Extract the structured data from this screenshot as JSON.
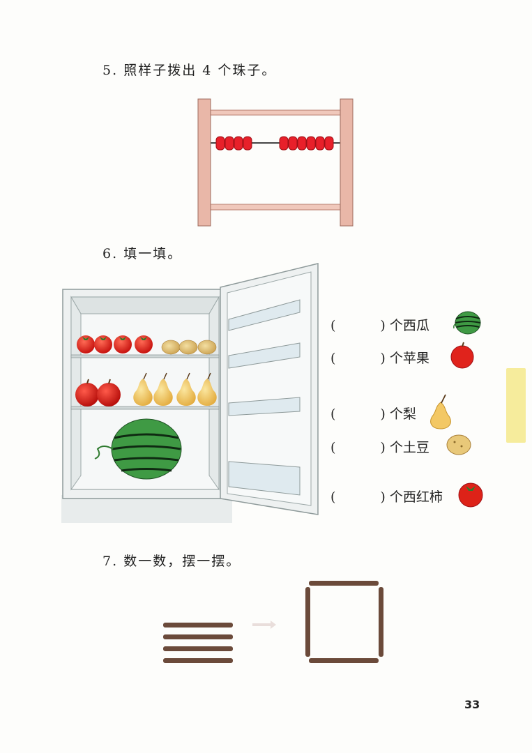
{
  "questions": [
    {
      "number": "5.",
      "text": "照样子拨出 4 个珠子。"
    },
    {
      "number": "6.",
      "text": "填一填。"
    },
    {
      "number": "7.",
      "text": "数一数，摆一摆。"
    }
  ],
  "fill_items": [
    {
      "open": "(",
      "close": ")",
      "label": "个西瓜",
      "icon": "watermelon-icon"
    },
    {
      "open": "(",
      "close": ")",
      "label": "个苹果",
      "icon": "apple-icon"
    },
    {
      "open": "(",
      "close": ")",
      "label": "个梨",
      "icon": "pear-icon"
    },
    {
      "open": "(",
      "close": ")",
      "label": "个土豆",
      "icon": "potato-icon"
    },
    {
      "open": "(",
      "close": ")",
      "label": "个西红柿",
      "icon": "tomato-icon"
    }
  ],
  "abacus": {
    "left_beads": 4,
    "right_beads": 6,
    "bead_color": "#e8202a"
  },
  "fridge_contents": {
    "tomatoes": 4,
    "potatoes": 3,
    "apples": 2,
    "pears": 4,
    "watermelons": 1
  },
  "sticks": {
    "stacked": 4,
    "square_sides": 4
  },
  "page_number": "33",
  "colors": {
    "tab": "#f6ec9c",
    "frame_wood": "#e9b7a8",
    "stick": "#6b4a3a"
  }
}
